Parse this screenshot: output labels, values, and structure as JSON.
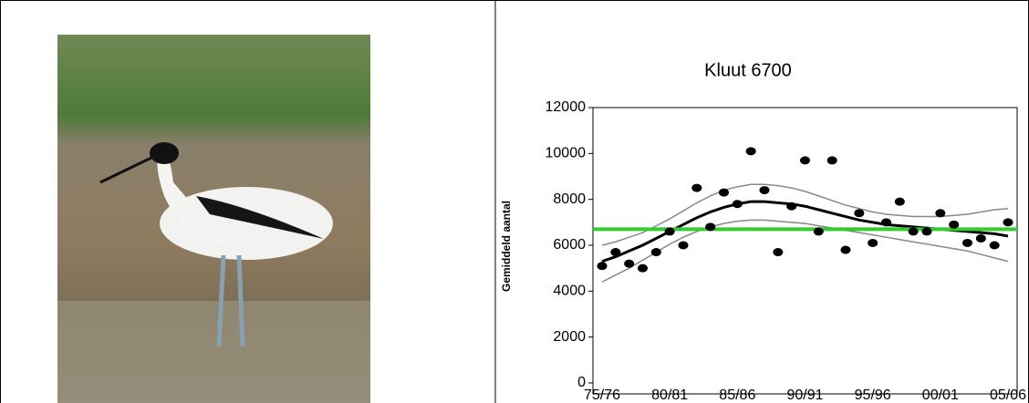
{
  "chart_data": {
    "type": "scatter",
    "title": "Kluut 6700",
    "y_label": "Gemiddeld aantal",
    "categories": [
      "75/76",
      null,
      null,
      null,
      null,
      "80/81",
      null,
      null,
      null,
      null,
      "85/86",
      null,
      null,
      null,
      null,
      "90/91",
      null,
      null,
      null,
      null,
      "95/96",
      null,
      null,
      null,
      null,
      "00/01",
      null,
      null,
      null,
      null,
      "05/06"
    ],
    "values": [
      5100,
      5700,
      5200,
      5000,
      5700,
      6600,
      6000,
      8500,
      6800,
      8300,
      7800,
      10100,
      8400,
      5700,
      7700,
      9700,
      6600,
      9700,
      5800,
      7400,
      6100,
      7000,
      7900,
      6600,
      6600,
      7400,
      6900,
      6100,
      6300,
      6000,
      7000
    ],
    "trend": [
      5300,
      5500,
      5750,
      6000,
      6300,
      6600,
      6900,
      7200,
      7450,
      7650,
      7800,
      7900,
      7900,
      7850,
      7800,
      7700,
      7550,
      7400,
      7250,
      7100,
      7000,
      6900,
      6850,
      6800,
      6750,
      6700,
      6650,
      6600,
      6550,
      6500,
      6400
    ],
    "upper": [
      6000,
      6150,
      6350,
      6550,
      6850,
      7150,
      7500,
      7850,
      8150,
      8400,
      8550,
      8650,
      8650,
      8600,
      8500,
      8350,
      8150,
      7950,
      7750,
      7600,
      7450,
      7350,
      7300,
      7250,
      7250,
      7250,
      7300,
      7350,
      7450,
      7550,
      7600
    ],
    "lower": [
      4400,
      4700,
      5000,
      5350,
      5700,
      6050,
      6350,
      6600,
      6800,
      6950,
      7050,
      7100,
      7100,
      7050,
      7000,
      6950,
      6850,
      6750,
      6650,
      6550,
      6450,
      6350,
      6250,
      6150,
      6050,
      5950,
      5850,
      5750,
      5600,
      5450,
      5300
    ],
    "reference": 6700,
    "reference_color": "#33cc33",
    "color": "#000000",
    "ylim": [
      0,
      12000
    ],
    "yticks": [
      0,
      2000,
      4000,
      6000,
      8000,
      10000,
      12000
    ]
  }
}
